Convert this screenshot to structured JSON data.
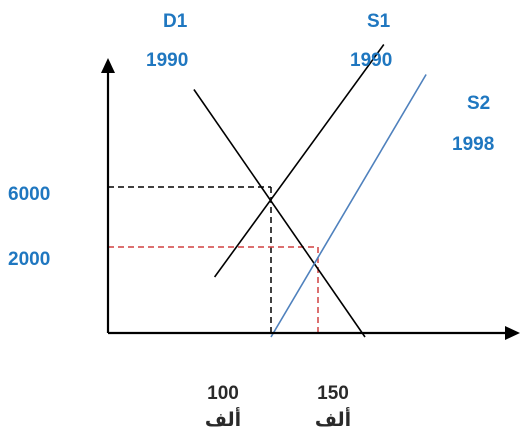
{
  "chart_data": {
    "type": "line",
    "xlabel": "",
    "ylabel": "",
    "x_ticks": [
      {
        "value": 100,
        "label": "100",
        "unit": "ألف"
      },
      {
        "value": 150,
        "label": "150",
        "unit": "ألف"
      }
    ],
    "y_ticks": [
      {
        "value": 6000,
        "label": "6000"
      },
      {
        "value": 2000,
        "label": "2000"
      }
    ],
    "series": [
      {
        "name": "D1",
        "year": "1990",
        "color": "#000000",
        "points": [
          [
            18,
            12500
          ],
          [
            200,
            -4000
          ]
        ]
      },
      {
        "name": "S1",
        "year": "1990",
        "color": "#000000",
        "points": [
          [
            40,
            0
          ],
          [
            220,
            15500
          ]
        ]
      },
      {
        "name": "S2",
        "year": "1998",
        "color": "#4F81BD",
        "points": [
          [
            100,
            -4000
          ],
          [
            265,
            13500
          ]
        ]
      }
    ],
    "guides": [
      {
        "name": "equilibrium-1990",
        "x": 100,
        "y": 6000,
        "color": "#000000"
      },
      {
        "name": "equilibrium-1998",
        "x": 150,
        "y": 2000,
        "color": "#D04040"
      }
    ]
  },
  "colors": {
    "label_blue": "#1F77C0",
    "axis": "#000000",
    "demand": "#000000",
    "supply1": "#000000",
    "supply2": "#4F81BD",
    "guide1": "#000000",
    "guide2": "#D04040"
  }
}
